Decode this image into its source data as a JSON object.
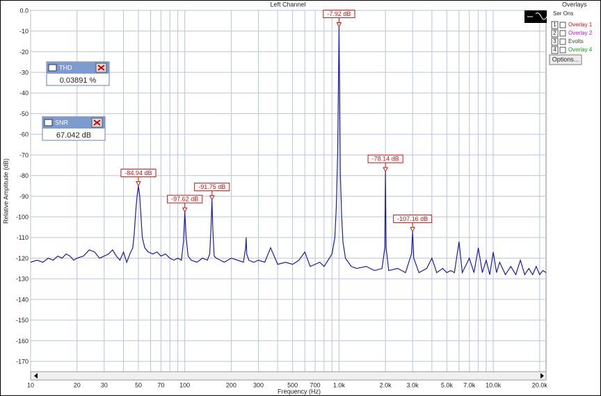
{
  "chart_data": {
    "type": "line",
    "title": "Left Channel",
    "x_label": "Frequency (Hz)",
    "y_label": "Relative Amplitude (dB)",
    "xscale": "log",
    "xlim": [
      10,
      22000
    ],
    "ylim": [
      -175,
      0
    ],
    "grid": true,
    "grid_color": "#b9c3e2",
    "xticks": [
      10,
      20,
      30,
      50,
      70,
      100,
      200,
      300,
      500,
      700,
      {
        "value": 1000,
        "label": "1.0k"
      },
      {
        "value": 2000,
        "label": "2.0k"
      },
      {
        "value": 3000,
        "label": "3.0k"
      },
      {
        "value": 5000,
        "label": "5.0k"
      },
      {
        "value": 7000,
        "label": "7.0k"
      },
      {
        "value": 10000,
        "label": "10.0k"
      },
      {
        "value": 20000,
        "label": "20.0k"
      }
    ],
    "x_minor_ticks": [
      40,
      60,
      80,
      90,
      400,
      600,
      800,
      900,
      4000,
      6000,
      8000,
      9000
    ],
    "yticks": [
      {
        "value": 0,
        "label": "0.0"
      },
      -10,
      -20,
      -30,
      -40,
      -50,
      -60,
      -70,
      -80,
      -90,
      -100,
      -110,
      -120,
      -130,
      -140,
      -150,
      -160,
      -170
    ],
    "series": [
      {
        "color": "#1c1ca8",
        "x": [
          10,
          11,
          12,
          13,
          14,
          15,
          16,
          17,
          18,
          19,
          20,
          22,
          24,
          26,
          28,
          30,
          32,
          34,
          36,
          38,
          40,
          42,
          44,
          46,
          47,
          48,
          49,
          50,
          51,
          52,
          53,
          55,
          58,
          62,
          66,
          70,
          75,
          80,
          85,
          90,
          95,
          98,
          100,
          102,
          105,
          110,
          120,
          130,
          140,
          145,
          148,
          150,
          152,
          155,
          160,
          170,
          180,
          200,
          220,
          240,
          248,
          250,
          252,
          260,
          280,
          300,
          330,
          360,
          400,
          450,
          500,
          550,
          600,
          650,
          700,
          750,
          800,
          850,
          900,
          940,
          960,
          980,
          990,
          1000,
          1010,
          1020,
          1040,
          1060,
          1100,
          1200,
          1300,
          1500,
          1700,
          1900,
          1980,
          2000,
          2020,
          2100,
          2400,
          2700,
          2950,
          3000,
          3050,
          3300,
          3700,
          4000,
          4300,
          4700,
          5000,
          5300,
          5600,
          6000,
          6300,
          7000,
          7500,
          8000,
          8500,
          9000,
          9500,
          10000,
          10500,
          11000,
          12000,
          13000,
          14000,
          15000,
          16000,
          17000,
          18000,
          19000,
          20000,
          21000,
          22000
        ],
        "values": [
          -122,
          -121,
          -122,
          -120,
          -121,
          -119,
          -120,
          -118,
          -119,
          -121,
          -120,
          -119,
          -116,
          -117,
          -120,
          -119,
          -118,
          -116,
          -119,
          -121,
          -117,
          -122,
          -118,
          -115,
          -108,
          -98,
          -90,
          -84.94,
          -90,
          -100,
          -110,
          -115,
          -117,
          -118,
          -117,
          -119,
          -118,
          -120,
          -121,
          -120,
          -121,
          -112,
          -97.62,
          -110,
          -119,
          -121,
          -122,
          -120,
          -121,
          -118,
          -105,
          -91.75,
          -106,
          -119,
          -120,
          -121,
          -122,
          -120,
          -121,
          -122,
          -115,
          -110,
          -118,
          -121,
          -122,
          -121,
          -122,
          -115,
          -123,
          -122,
          -123,
          -121,
          -117,
          -124,
          -123,
          -122,
          -124,
          -121,
          -118,
          -110,
          -95,
          -70,
          -40,
          -7.92,
          -40,
          -80,
          -100,
          -112,
          -120,
          -124,
          -125,
          -124,
          -126,
          -125,
          -115,
          -78.14,
          -115,
          -126,
          -125,
          -127,
          -118,
          -107.16,
          -120,
          -127,
          -125,
          -120,
          -127,
          -125,
          -127,
          -126,
          -127,
          -112,
          -127,
          -120,
          -127,
          -115,
          -127,
          -121,
          -128,
          -117,
          -127,
          -122,
          -128,
          -124,
          -128,
          -121,
          -128,
          -125,
          -128,
          -124,
          -128,
          -126,
          -127
        ]
      }
    ],
    "markers": [
      {
        "x": 50,
        "y": -84.94,
        "label": "-84.94 dB"
      },
      {
        "x": 100,
        "y": -97.62,
        "label": "-97.62 dB"
      },
      {
        "x": 150,
        "y": -91.75,
        "label": "-91.75 dB"
      },
      {
        "x": 1000,
        "y": -7.92,
        "label": "-7.92 dB"
      },
      {
        "x": 2000,
        "y": -78.14,
        "label": "-78.14 dB"
      },
      {
        "x": 3000,
        "y": -107.16,
        "label": "-107.16 dB"
      }
    ],
    "marker_color": "#d01010"
  },
  "widgets": {
    "thd": {
      "title": "THD",
      "value": "0.03891 %"
    },
    "snr": {
      "title": "SNR",
      "value": "67.042 dB"
    },
    "overlays": {
      "title": "Overlays",
      "side": "Ser Ons",
      "items": [
        {
          "number": "1",
          "label": "Overlay 1",
          "color": "#e01010"
        },
        {
          "number": "2",
          "label": "Overlay 2",
          "color": "#c810c8"
        },
        {
          "number": "3",
          "label": "Evolts",
          "color": "#404040"
        },
        {
          "number": "4",
          "label": "Overlay 4",
          "color": "#10a010"
        }
      ],
      "button": "Options..."
    }
  }
}
